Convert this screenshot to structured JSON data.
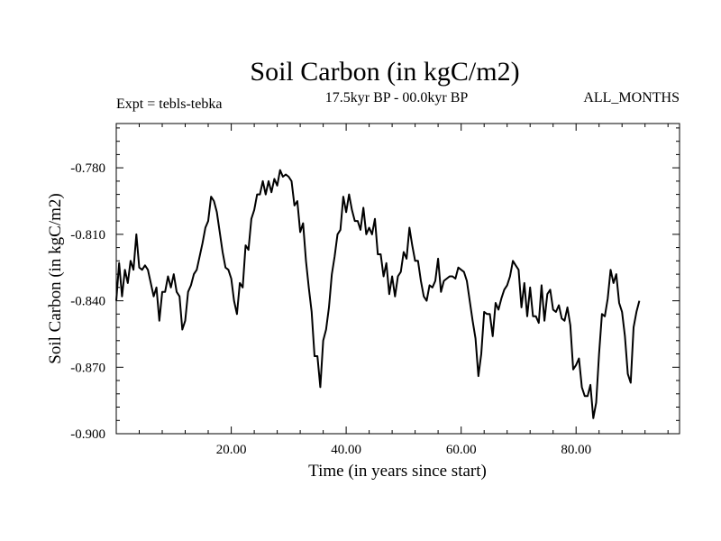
{
  "chart_data": {
    "type": "line",
    "title": "Soil Carbon (in kgC/m2)",
    "subtitle_left": "Expt = tebls-tebka",
    "subtitle_center": "17.5kyr BP - 00.0kyr BP",
    "subtitle_right": "ALL_MONTHS",
    "xlabel": "Time (in years since start)",
    "ylabel": "Soil Carbon (in kgC/m2)",
    "xlim": [
      0,
      98
    ],
    "ylim": [
      -0.9,
      -0.76
    ],
    "x_ticks": [
      20,
      40,
      60,
      80
    ],
    "x_tick_labels": [
      "20.00",
      "40.00",
      "60.00",
      "80.00"
    ],
    "y_ticks": [
      -0.78,
      -0.81,
      -0.84,
      -0.87,
      -0.9
    ],
    "y_tick_labels": [
      "-0.780",
      "-0.810",
      "-0.840",
      "-0.870",
      "-0.900"
    ],
    "series": [
      {
        "name": "Soil Carbon",
        "x_start": 0,
        "x_step": 0.5,
        "values": [
          -0.84,
          -0.823,
          -0.838,
          -0.826,
          -0.832,
          -0.822,
          -0.826,
          -0.81,
          -0.825,
          -0.826,
          -0.824,
          -0.826,
          -0.832,
          -0.838,
          -0.834,
          -0.849,
          -0.836,
          -0.836,
          -0.829,
          -0.834,
          -0.828,
          -0.836,
          -0.838,
          -0.853,
          -0.849,
          -0.836,
          -0.833,
          -0.828,
          -0.826,
          -0.82,
          -0.814,
          -0.807,
          -0.804,
          -0.793,
          -0.795,
          -0.8,
          -0.809,
          -0.818,
          -0.825,
          -0.826,
          -0.83,
          -0.84,
          -0.846,
          -0.832,
          -0.834,
          -0.815,
          -0.817,
          -0.803,
          -0.799,
          -0.792,
          -0.792,
          -0.786,
          -0.792,
          -0.786,
          -0.791,
          -0.785,
          -0.788,
          -0.781,
          -0.784,
          -0.783,
          -0.784,
          -0.786,
          -0.797,
          -0.795,
          -0.809,
          -0.805,
          -0.822,
          -0.834,
          -0.845,
          -0.865,
          -0.865,
          -0.879,
          -0.858,
          -0.853,
          -0.843,
          -0.828,
          -0.82,
          -0.81,
          -0.808,
          -0.793,
          -0.8,
          -0.792,
          -0.799,
          -0.804,
          -0.804,
          -0.808,
          -0.798,
          -0.81,
          -0.807,
          -0.81,
          -0.803,
          -0.819,
          -0.819,
          -0.829,
          -0.823,
          -0.837,
          -0.829,
          -0.838,
          -0.829,
          -0.827,
          -0.818,
          -0.821,
          -0.807,
          -0.815,
          -0.822,
          -0.822,
          -0.831,
          -0.838,
          -0.84,
          -0.833,
          -0.834,
          -0.831,
          -0.821,
          -0.836,
          -0.831,
          -0.83,
          -0.829,
          -0.829,
          -0.83,
          -0.825,
          -0.826,
          -0.827,
          -0.831,
          -0.84,
          -0.849,
          -0.857,
          -0.874,
          -0.864,
          -0.845,
          -0.846,
          -0.846,
          -0.856,
          -0.841,
          -0.844,
          -0.839,
          -0.835,
          -0.833,
          -0.829,
          -0.822,
          -0.824,
          -0.826,
          -0.843,
          -0.832,
          -0.847,
          -0.834,
          -0.847,
          -0.847,
          -0.85,
          -0.833,
          -0.849,
          -0.837,
          -0.835,
          -0.844,
          -0.845,
          -0.842,
          -0.848,
          -0.849,
          -0.843,
          -0.851,
          -0.871,
          -0.869,
          -0.866,
          -0.879,
          -0.883,
          -0.883,
          -0.878,
          -0.893,
          -0.886,
          -0.864,
          -0.846,
          -0.847,
          -0.839,
          -0.826,
          -0.832,
          -0.828,
          -0.841,
          -0.845,
          -0.856,
          -0.873,
          -0.877,
          -0.852,
          -0.845,
          -0.84
        ]
      }
    ]
  }
}
